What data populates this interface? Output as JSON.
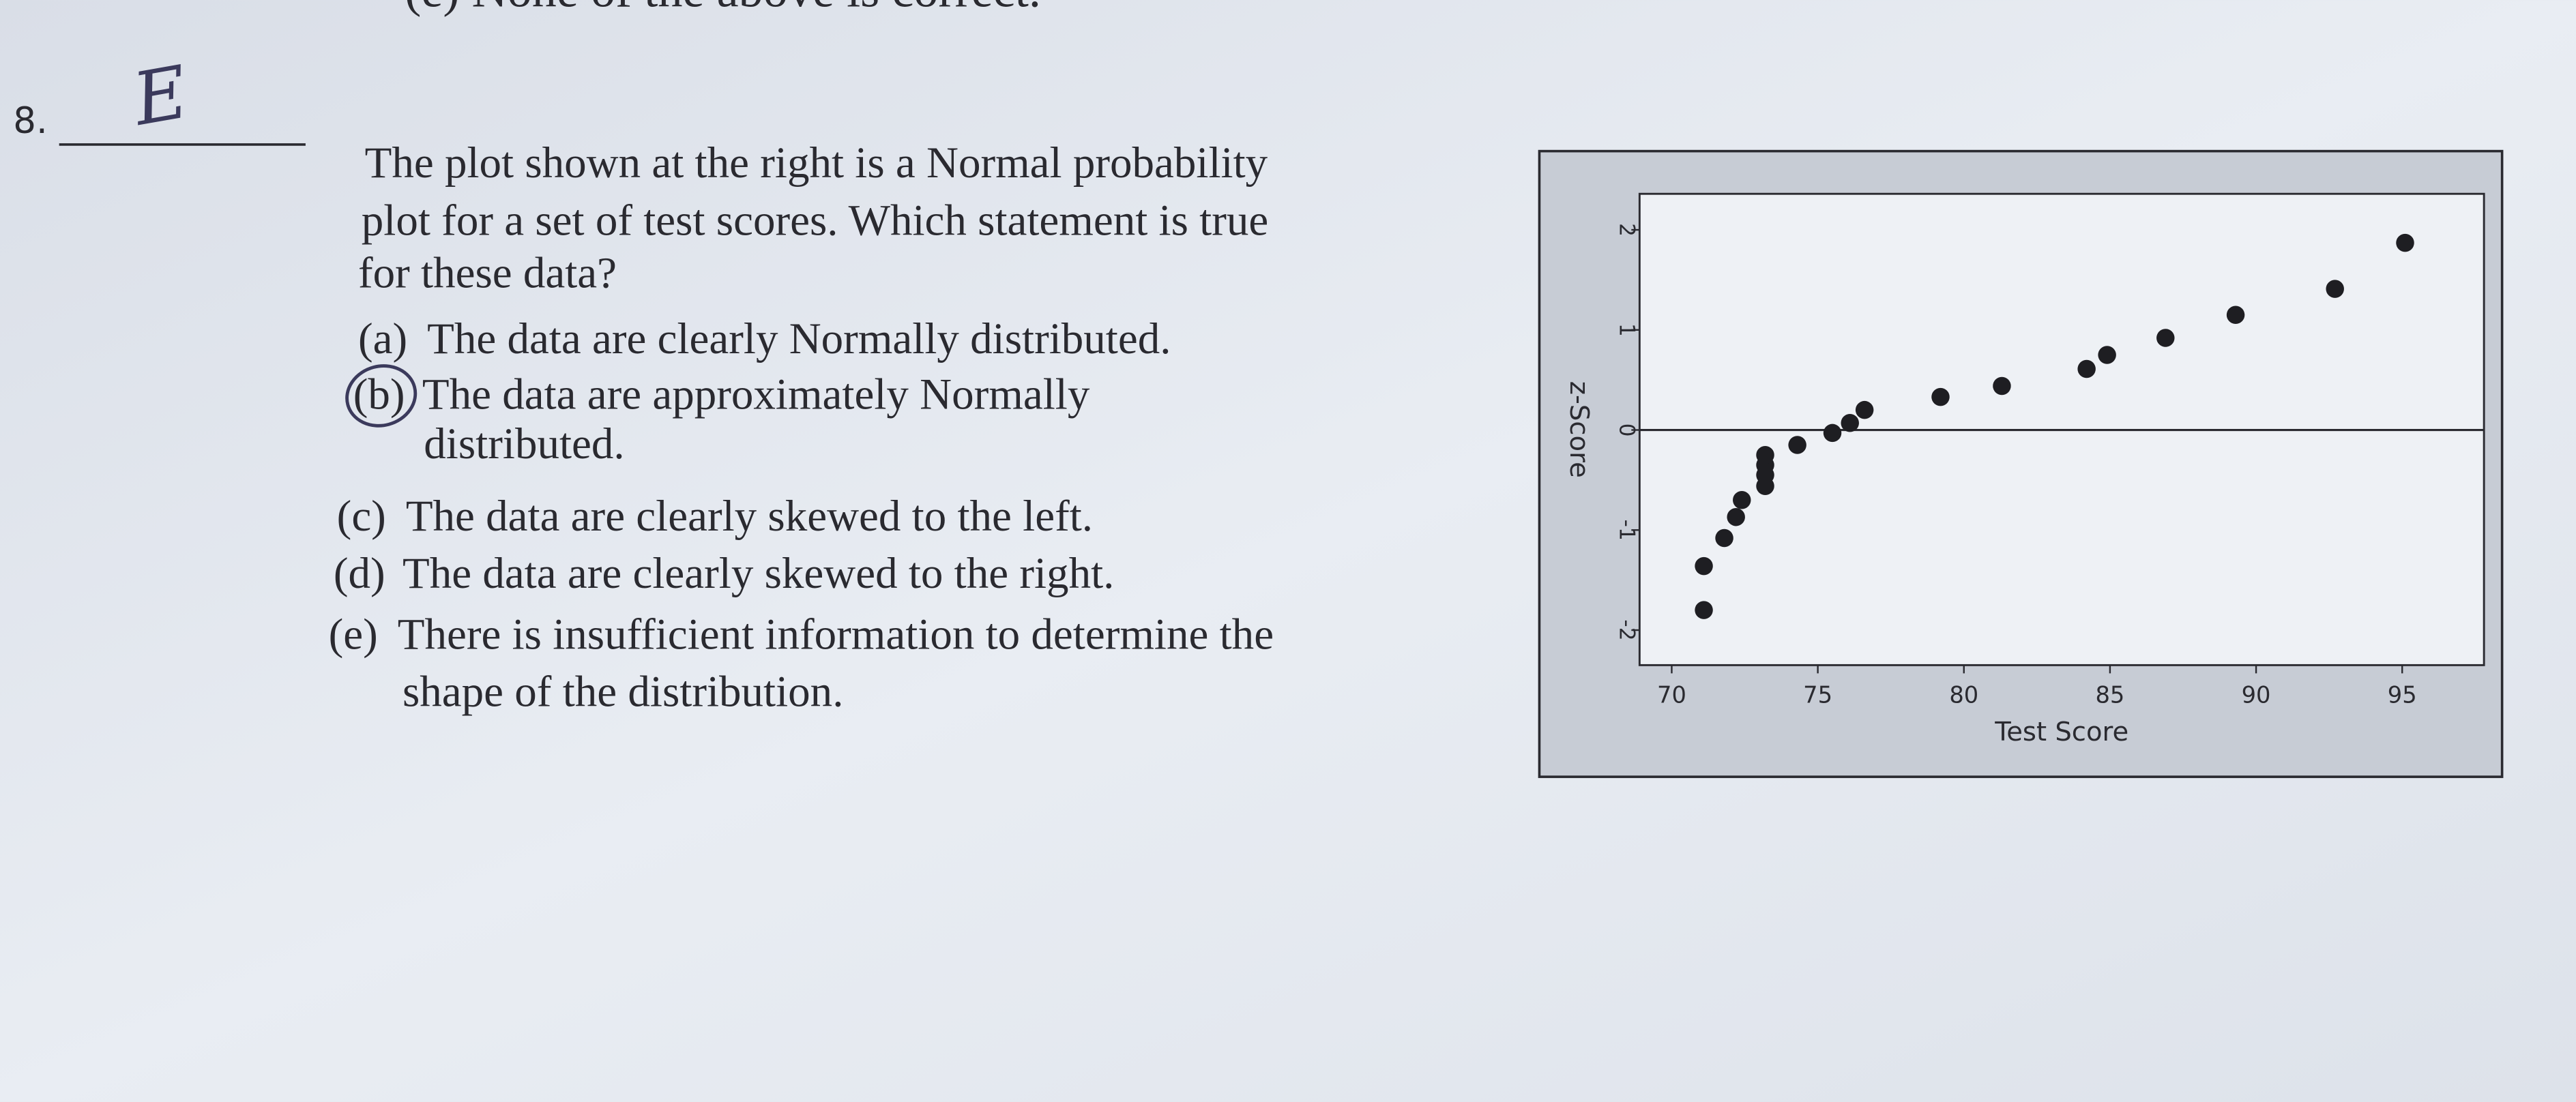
{
  "top_text": "(e) None of the above is correct.",
  "question": {
    "number": "8.",
    "answer": "E",
    "lines": [
      "The plot shown at the right is a Normal probability",
      "plot for a set of test scores.  Which statement is true",
      "for these data?"
    ],
    "options": [
      {
        "label": "(a)",
        "lines": [
          "The data are clearly Normally distributed."
        ]
      },
      {
        "label": "(b)",
        "lines": [
          "The data are approximately Normally",
          "distributed."
        ]
      },
      {
        "label": "(c)",
        "lines": [
          "The data are clearly skewed to the left."
        ]
      },
      {
        "label": "(d)",
        "lines": [
          "The data are clearly skewed to the right."
        ]
      },
      {
        "label": "(e)",
        "lines": [
          "There is insufficient information to determine the",
          "shape of the distribution."
        ]
      }
    ]
  },
  "chart_data": {
    "type": "scatter",
    "x_label": "Test Score",
    "y_label": "z-Score",
    "x": [
      71.1,
      71.1,
      71.8,
      72.2,
      72.4,
      73.2,
      73.2,
      73.2,
      73.2,
      74.3,
      75.5,
      76.1,
      76.6,
      79.2,
      81.3,
      84.2,
      84.9,
      86.9,
      89.3,
      92.7,
      95.1
    ],
    "y": [
      -1.8,
      -1.36,
      -1.08,
      -0.87,
      -0.7,
      -0.56,
      -0.45,
      -0.35,
      -0.25,
      -0.15,
      -0.03,
      0.07,
      0.2,
      0.33,
      0.44,
      0.61,
      0.75,
      0.92,
      1.15,
      1.41,
      1.87
    ],
    "color": "#1e1e22",
    "reference_line": 0,
    "xlim": [
      68.9,
      97.8
    ],
    "ylim": [
      -2.35,
      2.36
    ],
    "xticks": [
      70,
      75,
      80,
      85,
      90,
      95
    ],
    "yticks": [
      -2,
      -1,
      0,
      1,
      2
    ]
  }
}
